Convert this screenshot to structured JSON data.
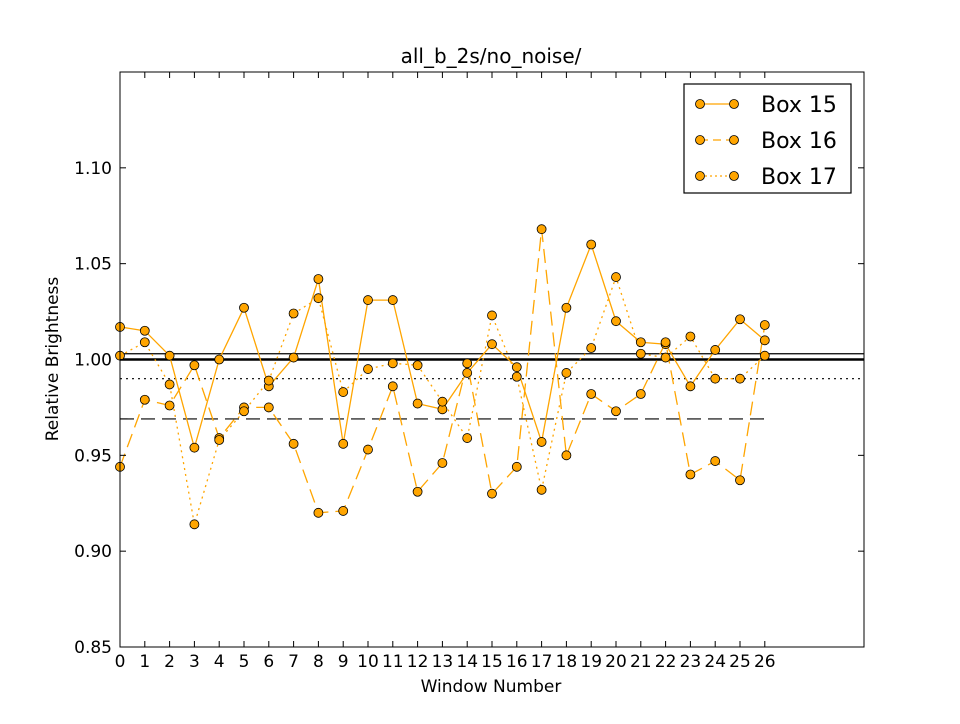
{
  "chart_data": {
    "type": "line",
    "title": "all_b_2s/no_noise/",
    "xlabel": "Window Number",
    "ylabel": "Relative Brightness",
    "xlim": [
      0,
      30
    ],
    "ylim": [
      0.85,
      1.15
    ],
    "x_ticks": [
      "0",
      "1",
      "2",
      "3",
      "4",
      "5",
      "6",
      "7",
      "8",
      "9",
      "10",
      "11",
      "12",
      "13",
      "14",
      "15",
      "16",
      "17",
      "18",
      "19",
      "20",
      "21",
      "22",
      "23",
      "24",
      "25",
      "26"
    ],
    "y_ticks": [
      "0.85",
      "0.90",
      "0.95",
      "1.00",
      "1.05",
      "1.10"
    ],
    "legend_position": "top-right",
    "marker_color": "#ffa500",
    "x": [
      0,
      1,
      2,
      3,
      4,
      5,
      6,
      7,
      8,
      9,
      10,
      11,
      12,
      13,
      14,
      15,
      16,
      17,
      18,
      19,
      20,
      21,
      22,
      23,
      24,
      25,
      26
    ],
    "series": [
      {
        "name": "Box 15",
        "linestyle": "solid",
        "values": [
          1.017,
          1.015,
          1.002,
          0.954,
          1.0,
          1.027,
          0.986,
          1.001,
          1.042,
          0.956,
          1.031,
          1.031,
          0.977,
          0.974,
          0.993,
          1.008,
          0.996,
          0.957,
          1.027,
          1.06,
          1.02,
          1.009,
          1.008,
          0.986,
          1.005,
          1.021,
          1.01
        ]
      },
      {
        "name": "Box 16",
        "linestyle": "dashed",
        "values": [
          0.944,
          0.979,
          0.976,
          0.997,
          0.959,
          0.975,
          0.975,
          0.956,
          0.92,
          0.921,
          0.953,
          0.986,
          0.931,
          0.946,
          0.998,
          0.93,
          0.944,
          1.068,
          0.95,
          0.982,
          0.973,
          0.982,
          1.009,
          0.94,
          0.947,
          0.937,
          1.018
        ]
      },
      {
        "name": "Box 17",
        "linestyle": "dotted",
        "values": [
          1.002,
          1.009,
          0.987,
          0.914,
          0.958,
          0.973,
          0.989,
          1.024,
          1.032,
          0.983,
          0.995,
          0.998,
          0.997,
          0.978,
          0.959,
          1.023,
          0.991,
          0.932,
          0.993,
          1.006,
          1.043,
          1.003,
          1.001,
          1.012,
          0.99,
          0.99,
          1.002
        ]
      }
    ],
    "reference_lines": [
      {
        "linestyle": "solid",
        "width": "thick",
        "value": 1.0
      },
      {
        "linestyle": "solid",
        "width": "thin",
        "value": 1.003
      },
      {
        "linestyle": "dotted",
        "width": "thin",
        "value": 0.99
      },
      {
        "linestyle": "dashed",
        "width": "thin",
        "value": 0.969,
        "x_range": [
          0,
          26
        ]
      }
    ]
  }
}
